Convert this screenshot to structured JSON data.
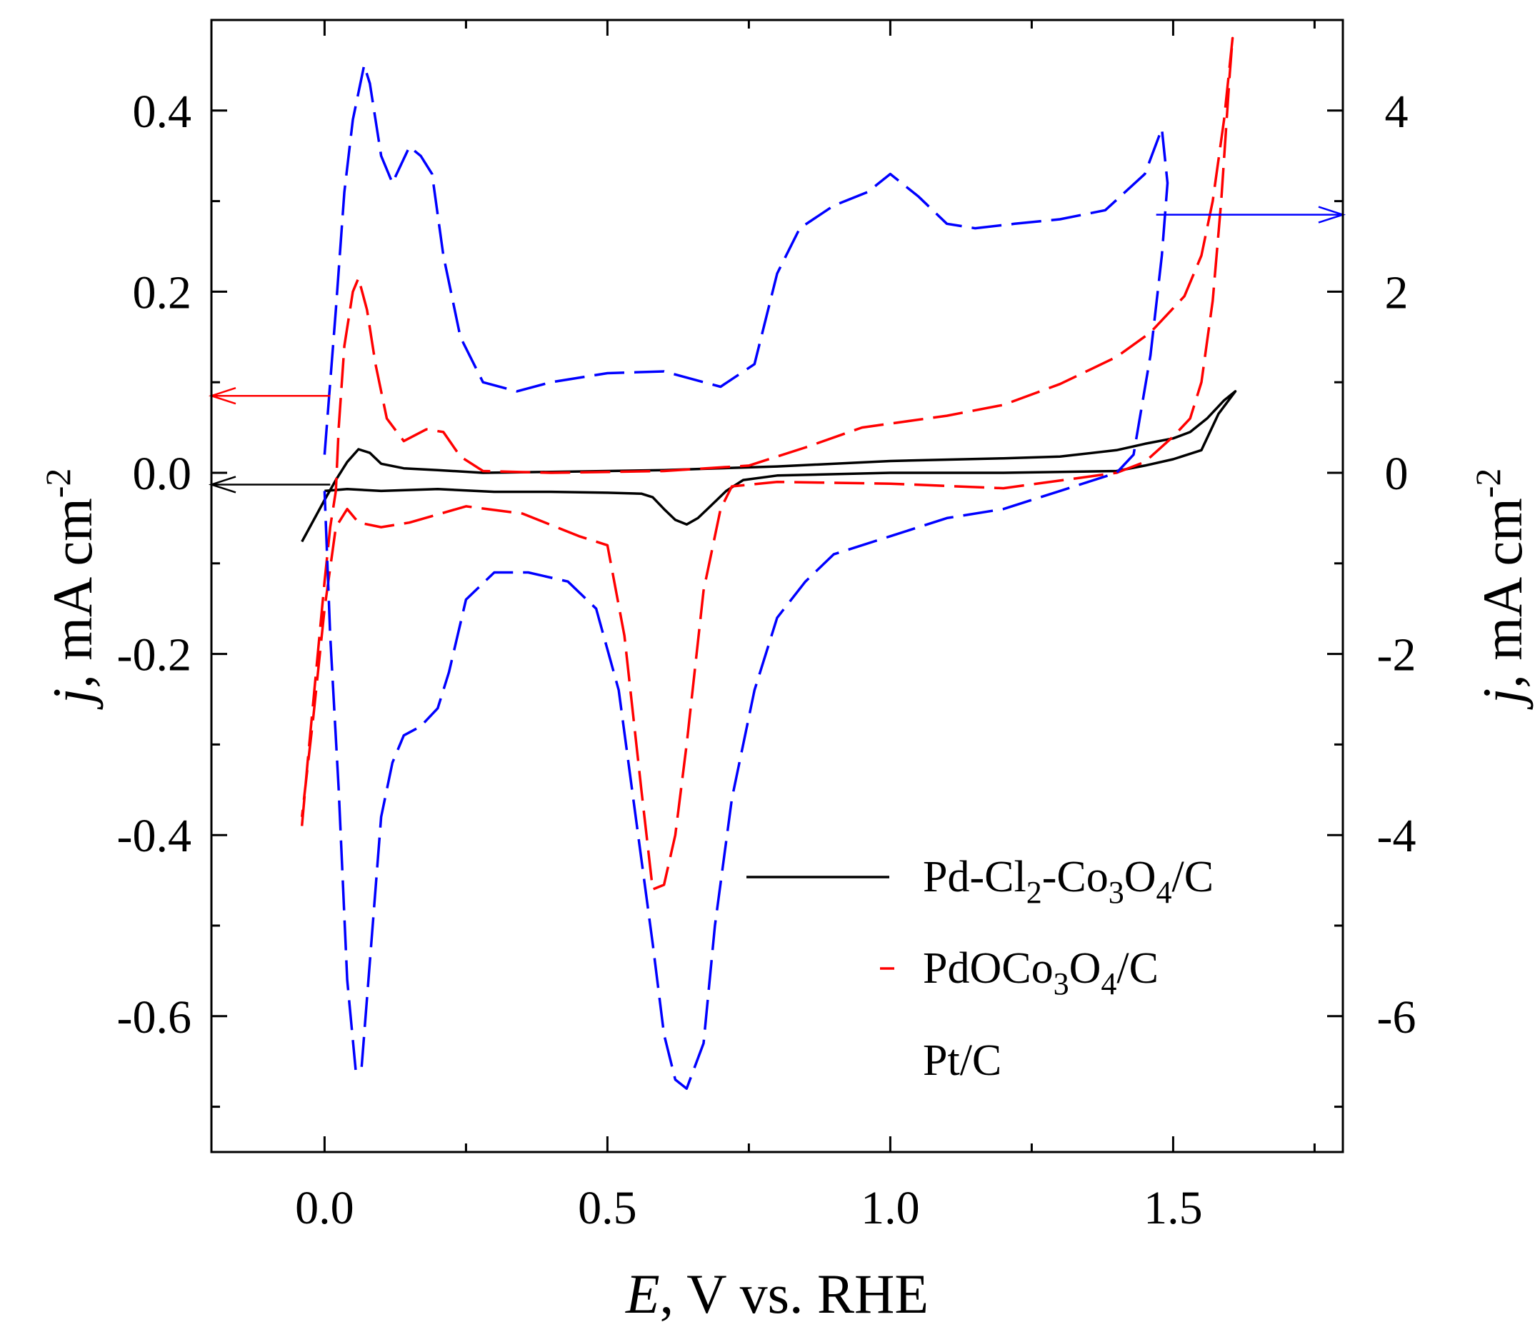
{
  "chart_data": {
    "type": "line",
    "title": "",
    "xlabel": {
      "var": "E",
      "rest": ", V vs. RHE"
    },
    "ylabel_left": {
      "var": "j",
      "rest": ", mA cm",
      "sup": "-2"
    },
    "ylabel_right": {
      "var": "j",
      "rest": ", mA cm",
      "sup": "-2"
    },
    "xlim": [
      -0.2,
      1.8
    ],
    "ylim_left": [
      -0.75,
      0.5
    ],
    "ylim_right": [
      -7.5,
      5.0
    ],
    "x_ticks": [
      {
        "v": 0.0,
        "label": "0.0"
      },
      {
        "v": 0.5,
        "label": "0.5"
      },
      {
        "v": 1.0,
        "label": "1.0"
      },
      {
        "v": 1.5,
        "label": "1.5"
      }
    ],
    "x_minor": [
      -0.25,
      0.25,
      0.75,
      1.25,
      1.75
    ],
    "y_left_ticks": [
      {
        "v": 0.4,
        "label": "0.4"
      },
      {
        "v": 0.2,
        "label": "0.2"
      },
      {
        "v": 0.0,
        "label": "0.0"
      },
      {
        "v": -0.2,
        "label": "-0.2"
      },
      {
        "v": -0.4,
        "label": "-0.4"
      },
      {
        "v": -0.6,
        "label": "-0.6"
      }
    ],
    "y_left_minor": [
      0.3,
      0.1,
      -0.1,
      -0.3,
      -0.5,
      -0.7
    ],
    "y_right_ticks": [
      {
        "v": 4,
        "label": "4"
      },
      {
        "v": 2,
        "label": "2"
      },
      {
        "v": 0,
        "label": "0"
      },
      {
        "v": -2,
        "label": "-2"
      },
      {
        "v": -4,
        "label": "-4"
      },
      {
        "v": -6,
        "label": "-6"
      }
    ],
    "y_right_minor": [
      3,
      1,
      -1,
      -3,
      -5,
      -7
    ],
    "series": [
      {
        "name": "Pd-Cl2-Co3O4/C",
        "legend": {
          "parts": [
            [
              "Pd-Cl",
              ""
            ],
            [
              "2",
              "sub"
            ],
            [
              "-Co",
              ""
            ],
            [
              "3",
              "sub"
            ],
            [
              "O",
              ""
            ],
            [
              "4",
              "sub"
            ],
            [
              "/C",
              ""
            ]
          ]
        },
        "axis": "left",
        "color": "#000000",
        "style": "solid",
        "points": [
          [
            -0.04,
            -0.076
          ],
          [
            0.0,
            -0.03
          ],
          [
            0.02,
            -0.008
          ],
          [
            0.04,
            0.012
          ],
          [
            0.06,
            0.026
          ],
          [
            0.08,
            0.022
          ],
          [
            0.1,
            0.01
          ],
          [
            0.14,
            0.005
          ],
          [
            0.2,
            0.003
          ],
          [
            0.28,
            0.0
          ],
          [
            0.4,
            0.001
          ],
          [
            0.6,
            0.003
          ],
          [
            0.8,
            0.007
          ],
          [
            1.0,
            0.013
          ],
          [
            1.2,
            0.016
          ],
          [
            1.3,
            0.018
          ],
          [
            1.4,
            0.025
          ],
          [
            1.45,
            0.032
          ],
          [
            1.5,
            0.038
          ],
          [
            1.53,
            0.045
          ],
          [
            1.56,
            0.06
          ],
          [
            1.59,
            0.08
          ],
          [
            1.61,
            0.09
          ],
          [
            1.58,
            0.065
          ],
          [
            1.55,
            0.025
          ],
          [
            1.5,
            0.015
          ],
          [
            1.45,
            0.008
          ],
          [
            1.4,
            0.002
          ],
          [
            1.2,
            0.0
          ],
          [
            1.0,
            0.0
          ],
          [
            0.8,
            -0.003
          ],
          [
            0.74,
            -0.008
          ],
          [
            0.71,
            -0.02
          ],
          [
            0.68,
            -0.038
          ],
          [
            0.66,
            -0.05
          ],
          [
            0.64,
            -0.057
          ],
          [
            0.62,
            -0.052
          ],
          [
            0.6,
            -0.04
          ],
          [
            0.58,
            -0.027
          ],
          [
            0.56,
            -0.023
          ],
          [
            0.5,
            -0.022
          ],
          [
            0.4,
            -0.021
          ],
          [
            0.3,
            -0.021
          ],
          [
            0.2,
            -0.018
          ],
          [
            0.1,
            -0.02
          ],
          [
            0.04,
            -0.018
          ],
          [
            0.0,
            -0.02
          ]
        ]
      },
      {
        "name": "PdOCo3O4/C",
        "legend": {
          "parts": [
            [
              "PdOCo",
              ""
            ],
            [
              "3",
              "sub"
            ],
            [
              "O",
              ""
            ],
            [
              "4",
              "sub"
            ],
            [
              "/C",
              ""
            ]
          ]
        },
        "axis": "left",
        "color": "#ff0000",
        "style": "dashed",
        "points": [
          [
            -0.04,
            -0.39
          ],
          [
            -0.03,
            -0.32
          ],
          [
            -0.015,
            -0.22
          ],
          [
            0.0,
            -0.12
          ],
          [
            0.01,
            -0.06
          ],
          [
            0.02,
            -0.02
          ],
          [
            0.025,
            0.05
          ],
          [
            0.035,
            0.14
          ],
          [
            0.05,
            0.2
          ],
          [
            0.06,
            0.215
          ],
          [
            0.075,
            0.18
          ],
          [
            0.09,
            0.12
          ],
          [
            0.11,
            0.06
          ],
          [
            0.14,
            0.035
          ],
          [
            0.18,
            0.048
          ],
          [
            0.21,
            0.045
          ],
          [
            0.24,
            0.018
          ],
          [
            0.28,
            0.002
          ],
          [
            0.4,
            0.0
          ],
          [
            0.6,
            0.002
          ],
          [
            0.75,
            0.008
          ],
          [
            0.85,
            0.028
          ],
          [
            0.95,
            0.05
          ],
          [
            1.1,
            0.063
          ],
          [
            1.2,
            0.075
          ],
          [
            1.3,
            0.098
          ],
          [
            1.4,
            0.128
          ],
          [
            1.46,
            0.155
          ],
          [
            1.52,
            0.195
          ],
          [
            1.55,
            0.24
          ],
          [
            1.57,
            0.3
          ],
          [
            1.59,
            0.39
          ],
          [
            1.605,
            0.48
          ],
          [
            1.6,
            0.44
          ],
          [
            1.585,
            0.3
          ],
          [
            1.57,
            0.19
          ],
          [
            1.55,
            0.1
          ],
          [
            1.53,
            0.06
          ],
          [
            1.5,
            0.04
          ],
          [
            1.45,
            0.012
          ],
          [
            1.4,
            0.0
          ],
          [
            1.2,
            -0.017
          ],
          [
            1.0,
            -0.012
          ],
          [
            0.8,
            -0.01
          ],
          [
            0.72,
            -0.015
          ],
          [
            0.7,
            -0.04
          ],
          [
            0.67,
            -0.13
          ],
          [
            0.64,
            -0.3
          ],
          [
            0.62,
            -0.4
          ],
          [
            0.6,
            -0.455
          ],
          [
            0.58,
            -0.46
          ],
          [
            0.56,
            -0.35
          ],
          [
            0.53,
            -0.18
          ],
          [
            0.5,
            -0.08
          ],
          [
            0.45,
            -0.07
          ],
          [
            0.35,
            -0.045
          ],
          [
            0.25,
            -0.037
          ],
          [
            0.15,
            -0.055
          ],
          [
            0.1,
            -0.06
          ],
          [
            0.06,
            -0.055
          ],
          [
            0.04,
            -0.04
          ],
          [
            0.02,
            -0.06
          ],
          [
            0.0,
            -0.15
          ],
          [
            -0.02,
            -0.27
          ],
          [
            -0.04,
            -0.38
          ]
        ]
      },
      {
        "name": "Pt/C",
        "legend": {
          "parts": [
            [
              "Pt/C",
              ""
            ]
          ]
        },
        "axis": "right",
        "color": "#0000ff",
        "style": "dashed",
        "points": [
          [
            0.0,
            0.2
          ],
          [
            0.02,
            1.8
          ],
          [
            0.035,
            3.1
          ],
          [
            0.05,
            3.9
          ],
          [
            0.06,
            4.2
          ],
          [
            0.07,
            4.5
          ],
          [
            0.08,
            4.3
          ],
          [
            0.1,
            3.5
          ],
          [
            0.12,
            3.2
          ],
          [
            0.15,
            3.6
          ],
          [
            0.17,
            3.5
          ],
          [
            0.19,
            3.3
          ],
          [
            0.21,
            2.4
          ],
          [
            0.24,
            1.5
          ],
          [
            0.28,
            1.0
          ],
          [
            0.34,
            0.9
          ],
          [
            0.4,
            1.0
          ],
          [
            0.5,
            1.1
          ],
          [
            0.6,
            1.12
          ],
          [
            0.7,
            0.95
          ],
          [
            0.76,
            1.2
          ],
          [
            0.8,
            2.2
          ],
          [
            0.84,
            2.7
          ],
          [
            0.9,
            2.95
          ],
          [
            0.96,
            3.1
          ],
          [
            1.0,
            3.3
          ],
          [
            1.05,
            3.05
          ],
          [
            1.1,
            2.75
          ],
          [
            1.15,
            2.7
          ],
          [
            1.22,
            2.75
          ],
          [
            1.3,
            2.8
          ],
          [
            1.38,
            2.9
          ],
          [
            1.45,
            3.3
          ],
          [
            1.48,
            3.8
          ],
          [
            1.49,
            3.2
          ],
          [
            1.48,
            2.4
          ],
          [
            1.46,
            1.3
          ],
          [
            1.43,
            0.2
          ],
          [
            1.4,
            0.0
          ],
          [
            1.3,
            -0.2
          ],
          [
            1.2,
            -0.4
          ],
          [
            1.1,
            -0.5
          ],
          [
            1.0,
            -0.7
          ],
          [
            0.9,
            -0.9
          ],
          [
            0.85,
            -1.2
          ],
          [
            0.8,
            -1.6
          ],
          [
            0.76,
            -2.4
          ],
          [
            0.72,
            -3.6
          ],
          [
            0.69,
            -5.0
          ],
          [
            0.67,
            -6.3
          ],
          [
            0.64,
            -6.8
          ],
          [
            0.62,
            -6.7
          ],
          [
            0.6,
            -6.2
          ],
          [
            0.58,
            -5.2
          ],
          [
            0.55,
            -3.8
          ],
          [
            0.52,
            -2.4
          ],
          [
            0.48,
            -1.5
          ],
          [
            0.43,
            -1.2
          ],
          [
            0.36,
            -1.1
          ],
          [
            0.3,
            -1.1
          ],
          [
            0.25,
            -1.4
          ],
          [
            0.22,
            -2.2
          ],
          [
            0.2,
            -2.6
          ],
          [
            0.17,
            -2.8
          ],
          [
            0.14,
            -2.9
          ],
          [
            0.12,
            -3.2
          ],
          [
            0.1,
            -3.8
          ],
          [
            0.08,
            -5.4
          ],
          [
            0.065,
            -6.6
          ],
          [
            0.055,
            -6.6
          ],
          [
            0.04,
            -5.6
          ],
          [
            0.025,
            -3.5
          ],
          [
            0.01,
            -1.8
          ],
          [
            0.0,
            -0.2
          ]
        ]
      }
    ],
    "annotations": [
      {
        "type": "arrow",
        "axis": "left",
        "y": 0.085,
        "x_from": 0.01,
        "x_to": -0.2,
        "color": "#ff0000"
      },
      {
        "type": "arrow",
        "axis": "left",
        "y": -0.013,
        "x_from": 0.01,
        "x_to": -0.2,
        "color": "#000000"
      },
      {
        "type": "arrow",
        "axis": "right",
        "y": 2.85,
        "x_from": 1.47,
        "x_to": 1.8,
        "color": "#0000ff"
      }
    ],
    "legend_position": "bottom-right"
  }
}
